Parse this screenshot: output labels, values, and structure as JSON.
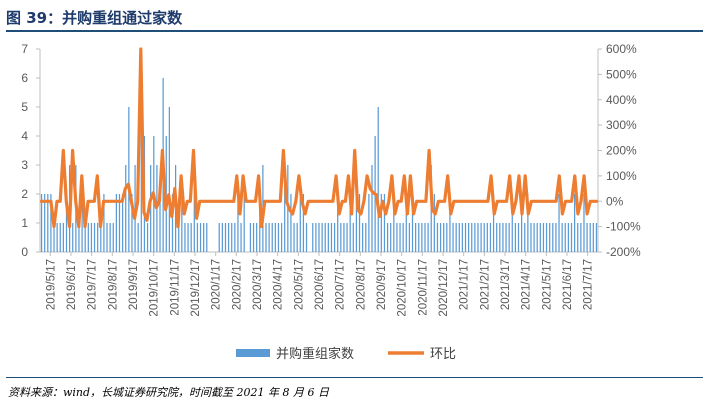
{
  "figure": {
    "title": "图 39：并购重组通过家数",
    "source": "资料来源：wind，长城证券研究院，时间截至 2021 年 8 月 6 日"
  },
  "chart_data": {
    "type": "bar+line",
    "categories": [
      "2019/5/17",
      "2019/6/17",
      "2019/7/17",
      "2019/8/17",
      "2019/9/17",
      "2019/10/17",
      "2019/11/17",
      "2019/12/17",
      "2020/1/17",
      "2020/2/17",
      "2020/3/17",
      "2020/4/17",
      "2020/5/17",
      "2020/6/17",
      "2020/7/17",
      "2020/8/17",
      "2020/9/17",
      "2020/10/17",
      "2020/11/17",
      "2020/12/17",
      "2021/1/17",
      "2021/2/17",
      "2021/3/17",
      "2021/4/17",
      "2021/5/17",
      "2021/6/17",
      "2021/7/17"
    ],
    "y_left": {
      "min": 0,
      "max": 7,
      "ticks": [
        "0",
        "1",
        "2",
        "3",
        "4",
        "5",
        "6",
        "7"
      ]
    },
    "y_right": {
      "min": -200,
      "max": 600,
      "ticks": [
        "-200%",
        "-100%",
        "0%",
        "100%",
        "200%",
        "300%",
        "400%",
        "500%",
        "600%"
      ]
    },
    "bar_series": {
      "name": "并购重组家数",
      "color": "#5b9bd5",
      "values": [
        2,
        2,
        2,
        2,
        1,
        1,
        1,
        1,
        2,
        3,
        1,
        3,
        1,
        2,
        1,
        1,
        1,
        1,
        1,
        1,
        2,
        1,
        1,
        1,
        2,
        2,
        2,
        3,
        5,
        2,
        3,
        1,
        7,
        4,
        1,
        3,
        4,
        3,
        2,
        6,
        4,
        5,
        2,
        3,
        1,
        2,
        1,
        1,
        1,
        3,
        1,
        1,
        1,
        1,
        0,
        0,
        0,
        1,
        1,
        1,
        1,
        1,
        1,
        2,
        1,
        2,
        0,
        1,
        1,
        1,
        2,
        3,
        1,
        1,
        1,
        1,
        1,
        1,
        3,
        3,
        2,
        1,
        1,
        2,
        2,
        1,
        0,
        1,
        1,
        1,
        1,
        1,
        1,
        1,
        1,
        2,
        1,
        1,
        1,
        2,
        1,
        3,
        2,
        1,
        1,
        2,
        3,
        4,
        5,
        2,
        2,
        1,
        1,
        2,
        1,
        1,
        1,
        2,
        1,
        2,
        1,
        1,
        1,
        1,
        1,
        3,
        2,
        1,
        1,
        1,
        1,
        2,
        1,
        1,
        1,
        1,
        1,
        1,
        1,
        1,
        1,
        1,
        1,
        1,
        1,
        2,
        1,
        1,
        1,
        1,
        1,
        2,
        1,
        1,
        2,
        1,
        2,
        1,
        1,
        1,
        1,
        1,
        1,
        1,
        1,
        1,
        2,
        1,
        1,
        1,
        1,
        2,
        1,
        1,
        2,
        1,
        1,
        1,
        1
      ]
    },
    "line_series": {
      "name": "环比",
      "color": "#ed7d31",
      "values": [
        0,
        0,
        0,
        0,
        -100,
        0,
        0,
        200,
        0,
        -100,
        200,
        0,
        -100,
        100,
        -100,
        0,
        0,
        0,
        100,
        -100,
        0,
        0,
        0,
        0,
        0,
        0,
        0,
        50,
        67,
        0,
        -67,
        0,
        600,
        -43,
        -75,
        0,
        33,
        -25,
        0,
        200,
        -33,
        25,
        -60,
        50,
        -100,
        100,
        -50,
        0,
        0,
        200,
        -67,
        0,
        0,
        0,
        0,
        0,
        0,
        0,
        0,
        0,
        0,
        0,
        0,
        100,
        -50,
        100,
        0,
        0,
        0,
        0,
        100,
        -100,
        0,
        0,
        0,
        0,
        0,
        0,
        200,
        0,
        -33,
        -50,
        0,
        100,
        0,
        -50,
        0,
        0,
        0,
        0,
        0,
        0,
        0,
        0,
        0,
        100,
        -50,
        0,
        0,
        100,
        -50,
        200,
        -33,
        -50,
        0,
        100,
        50,
        33,
        25,
        -60,
        0,
        -50,
        0,
        100,
        -50,
        0,
        0,
        100,
        -50,
        100,
        -50,
        0,
        0,
        0,
        0,
        200,
        -33,
        -50,
        0,
        0,
        0,
        100,
        -50,
        0,
        0,
        0,
        0,
        0,
        0,
        0,
        0,
        0,
        0,
        0,
        0,
        100,
        -50,
        0,
        0,
        0,
        0,
        100,
        -50,
        0,
        100,
        -50,
        100,
        -50,
        0,
        0,
        0,
        0,
        0,
        0,
        0,
        0,
        0,
        100,
        -50,
        0,
        0,
        0,
        100,
        -50,
        0,
        100,
        -50,
        0,
        0,
        0
      ]
    },
    "legend_position": "bottom",
    "grid": false
  }
}
